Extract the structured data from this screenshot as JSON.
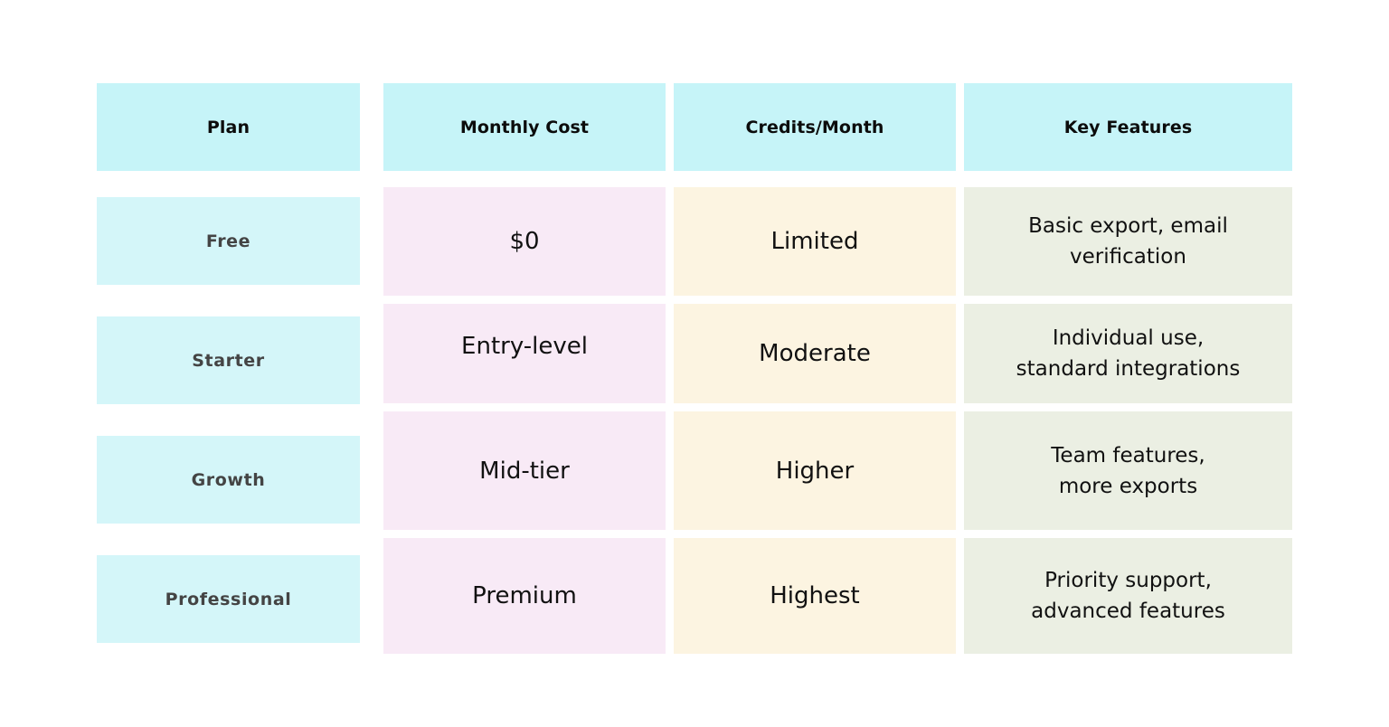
{
  "table": {
    "headers": {
      "plan": "Plan",
      "cost": "Monthly Cost",
      "credits": "Credits/Month",
      "features": "Key Features"
    },
    "rows": [
      {
        "plan": "Free",
        "cost": "$0",
        "credits": "Limited",
        "features_line1": "Basic export, email",
        "features_line2": "verification"
      },
      {
        "plan": "Starter",
        "cost": "Entry-level",
        "credits": "Moderate",
        "features_line1": "Individual use,",
        "features_line2": "standard integrations"
      },
      {
        "plan": "Growth",
        "cost": "Mid-tier",
        "credits": "Higher",
        "features_line1": "Team features,",
        "features_line2": "more exports"
      },
      {
        "plan": "Professional",
        "cost": "Premium",
        "credits": "Highest",
        "features_line1": "Priority support,",
        "features_line2": "advanced features"
      }
    ]
  },
  "colors": {
    "header_bg": "#c6f4f8",
    "plan_bg": "#d4f6f9",
    "cost_bg": "#f8eaf6",
    "credits_bg": "#fcf4e1",
    "features_bg": "#ebefe3"
  }
}
